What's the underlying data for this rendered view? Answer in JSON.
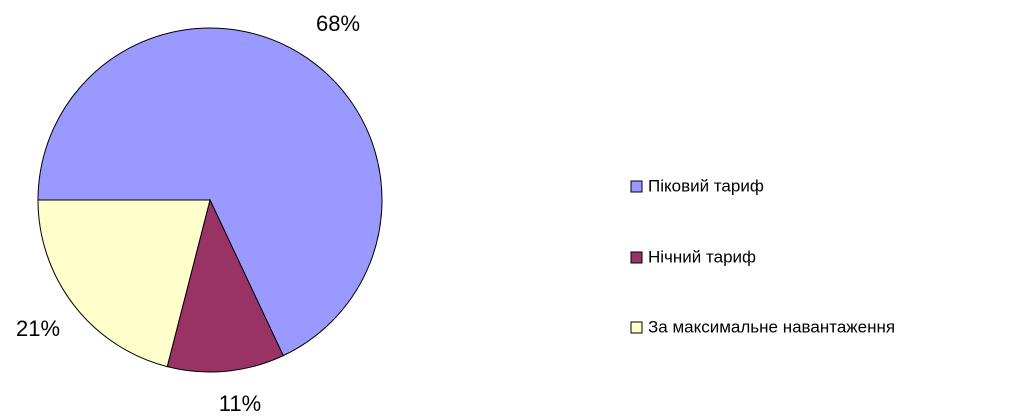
{
  "chart_data": {
    "type": "pie",
    "categories": [
      "Піковий тариф",
      "Нічний тариф",
      "За максимальне навантаження"
    ],
    "values": [
      68,
      11,
      21
    ],
    "value_labels": [
      "68%",
      "11%",
      "21%"
    ],
    "colors": [
      "#9999ff",
      "#993366",
      "#ffffcc"
    ]
  }
}
